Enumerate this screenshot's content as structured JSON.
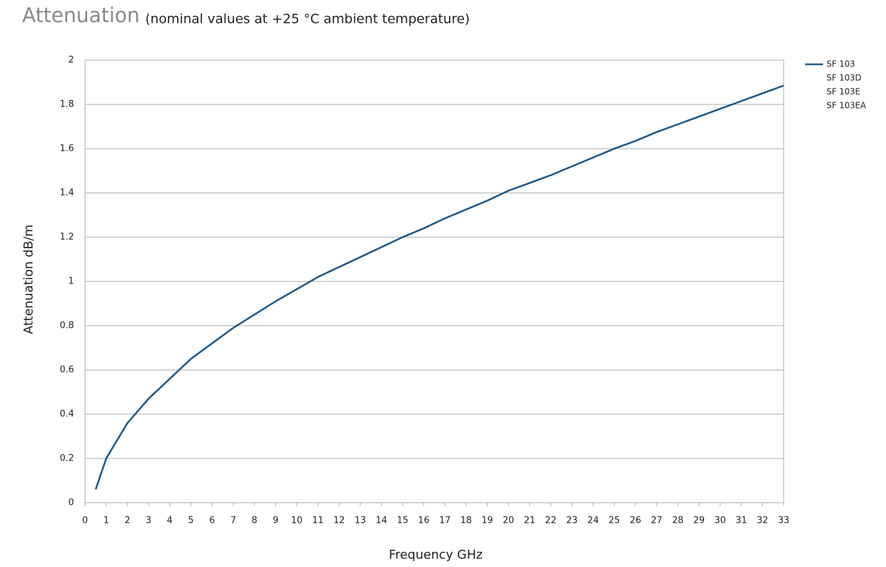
{
  "chart_data": {
    "type": "line",
    "title": "Attenuation",
    "subtitle": "(nominal values at +25 °C ambient temperature)",
    "x_label": "Frequency GHz",
    "y_label": "Attenuation dB/m",
    "x": [
      0.5,
      1,
      2,
      3,
      4,
      5,
      6,
      7,
      8,
      9,
      10,
      11,
      12,
      13,
      14,
      15,
      16,
      17,
      18,
      19,
      20,
      21,
      22,
      23,
      24,
      25,
      26,
      27,
      28,
      29,
      30,
      31,
      32,
      33
    ],
    "series": [
      {
        "name": "SF 103",
        "color": "#1d5a8c",
        "values": [
          0.06,
          0.2,
          0.36,
          0.47,
          0.56,
          0.65,
          0.72,
          0.79,
          0.85,
          0.91,
          0.965,
          1.02,
          1.065,
          1.11,
          1.155,
          1.2,
          1.24,
          1.285,
          1.325,
          1.365,
          1.41,
          1.445,
          1.48,
          1.52,
          1.56,
          1.6,
          1.635,
          1.675,
          1.71,
          1.745,
          1.78,
          1.815,
          1.85,
          1.885
        ]
      }
    ],
    "legend_entries_without_line": [
      "SF 103D",
      "SF 103E",
      "SF 103EA"
    ],
    "xlim": [
      0,
      33
    ],
    "xticks": [
      0,
      1,
      2,
      3,
      4,
      5,
      6,
      7,
      8,
      9,
      10,
      11,
      12,
      13,
      14,
      15,
      16,
      17,
      18,
      19,
      20,
      21,
      22,
      23,
      24,
      25,
      26,
      27,
      28,
      29,
      30,
      31,
      32,
      33
    ],
    "ylim": [
      0,
      2
    ],
    "yticks": [
      0,
      0.2,
      0.4,
      0.6,
      0.8,
      1,
      1.2,
      1.4,
      1.6,
      1.8,
      2
    ],
    "grid": true,
    "legend": "right"
  }
}
